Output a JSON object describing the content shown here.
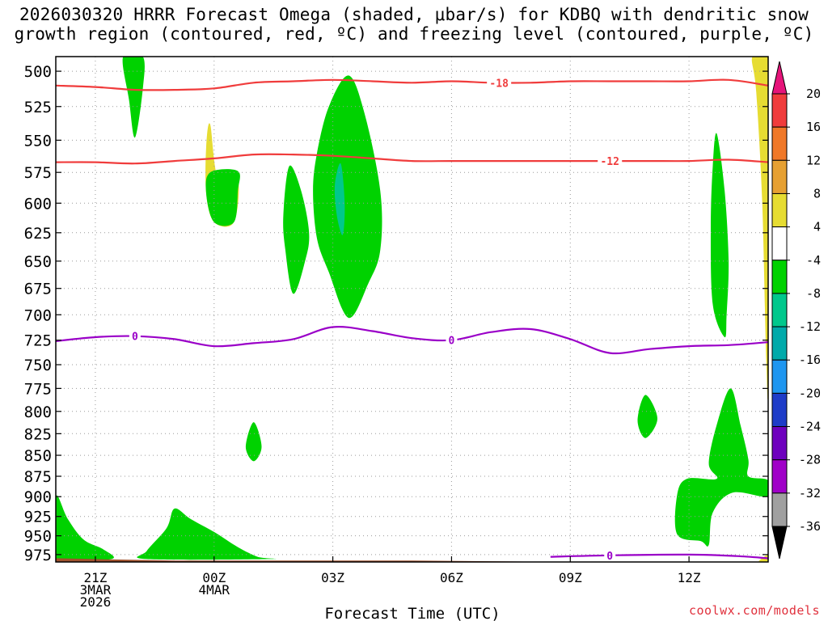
{
  "title_line1": "2026030320 HRRR Forecast Omega (shaded, μbar/s) for KDBQ with dendritic snow",
  "title_line2": "growth region (contoured, red, ºC) and freezing level (contoured, purple, ºC)",
  "credit": "coolwx.com/models",
  "chart_data": {
    "type": "heatmap",
    "title": "2026030320 HRRR Forecast Omega (shaded, μbar/s) for KDBQ with dendritic snow growth region (contoured, red, ºC) and freezing level (contoured, purple, ºC)",
    "xlabel": "Forecast Time (UTC)",
    "ylabel": "",
    "x_unit": "forecast hour",
    "xlim": [
      -1,
      17
    ],
    "ylim": [
      490,
      985
    ],
    "y_scale": "log-pressure (inverted)",
    "x_ticks": [
      {
        "x": 0,
        "lines": [
          "21Z",
          "3MAR",
          "2026"
        ]
      },
      {
        "x": 3,
        "lines": [
          "00Z",
          "4MAR"
        ]
      },
      {
        "x": 6,
        "lines": [
          "03Z"
        ]
      },
      {
        "x": 9,
        "lines": [
          "06Z"
        ]
      },
      {
        "x": 12,
        "lines": [
          "09Z"
        ]
      },
      {
        "x": 15,
        "lines": [
          "12Z"
        ]
      }
    ],
    "y_ticks": [
      500,
      525,
      550,
      575,
      600,
      625,
      650,
      675,
      700,
      725,
      750,
      775,
      800,
      825,
      850,
      875,
      900,
      925,
      950,
      975
    ],
    "colorbar": {
      "labels": [
        "20",
        "16",
        "12",
        "8",
        "4",
        "-4",
        "-8",
        "-12",
        "-16",
        "-20",
        "-24",
        "-28",
        "-32",
        "-36"
      ],
      "bins": [
        {
          "from": 16,
          "to": 20,
          "color": "#f03c3c"
        },
        {
          "from": 12,
          "to": 16,
          "color": "#f07828"
        },
        {
          "from": 8,
          "to": 12,
          "color": "#e6a032"
        },
        {
          "from": 4,
          "to": 8,
          "color": "#e6dc32"
        },
        {
          "from": -4,
          "to": 4,
          "color": "#ffffff"
        },
        {
          "from": -8,
          "to": -4,
          "color": "#00d200"
        },
        {
          "from": -12,
          "to": -8,
          "color": "#00c88c"
        },
        {
          "from": -16,
          "to": -12,
          "color": "#00aaaa"
        },
        {
          "from": -20,
          "to": -16,
          "color": "#1e96f0"
        },
        {
          "from": -24,
          "to": -20,
          "color": "#1e3cc8"
        },
        {
          "from": -28,
          "to": -24,
          "color": "#6e00be"
        },
        {
          "from": -32,
          "to": -28,
          "color": "#a000c8"
        },
        {
          "from": -36,
          "to": -32,
          "color": "#a0a0a0"
        }
      ],
      "over_color": "#e6147a",
      "under_color": "#000000"
    },
    "contours": [
      {
        "name": "-18C isotherm (dendritic growth top)",
        "label": "-18",
        "color": "#f03c3c",
        "x": [
          -1,
          0,
          1,
          2,
          3,
          4,
          5,
          6,
          7,
          8,
          9,
          10,
          11,
          12,
          13,
          14,
          15,
          16,
          17
        ],
        "p": [
          510,
          511,
          513,
          513,
          512,
          508,
          507,
          506,
          507,
          508,
          507,
          508,
          508,
          507,
          507,
          507,
          507,
          506,
          510
        ],
        "label_x": 10.2
      },
      {
        "name": "-12C isotherm (dendritic growth bottom)",
        "label": "-12",
        "color": "#f03c3c",
        "x": [
          -1,
          0,
          1,
          2,
          3,
          4,
          5,
          6,
          7,
          8,
          9,
          10,
          11,
          12,
          13,
          14,
          15,
          16,
          17
        ],
        "p": [
          567,
          567,
          568,
          566,
          564,
          561,
          561,
          562,
          564,
          566,
          566,
          566,
          566,
          566,
          566,
          566,
          566,
          565,
          567
        ],
        "label_x": 13.0
      },
      {
        "name": "0C isotherm (freezing level)",
        "label": "0",
        "color": "#9a00c8",
        "x": [
          -1,
          0,
          1,
          2,
          3,
          4,
          5,
          6,
          7,
          8,
          9,
          10,
          11,
          12,
          13,
          14,
          15,
          16,
          17
        ],
        "p": [
          726,
          722,
          721,
          724,
          731,
          728,
          724,
          712,
          716,
          723,
          725,
          717,
          714,
          724,
          738,
          734,
          731,
          730,
          727
        ],
        "label_x": 1.0,
        "label2_x": 9.0
      },
      {
        "name": "0C isotherm near surface",
        "label": "0",
        "color": "#9a00c8",
        "x": [
          11.5,
          13,
          15,
          16.2,
          17
        ],
        "p": [
          978,
          976,
          975,
          977,
          980
        ],
        "label_x": 13.0
      }
    ],
    "omega_regions": [
      {
        "bin": "-4 to -8",
        "color": "#00d200",
        "points": [
          [
            0.7,
            490
          ],
          [
            1.2,
            490
          ],
          [
            1.2,
            512
          ],
          [
            1.0,
            548
          ],
          [
            0.85,
            520
          ]
        ]
      },
      {
        "bin": "4 to 8",
        "color": "#e6dc32",
        "points": [
          [
            2.9,
            538
          ],
          [
            3.1,
            580
          ],
          [
            3.6,
            580
          ],
          [
            3.5,
            616
          ],
          [
            3.0,
            616
          ],
          [
            2.8,
            592
          ],
          [
            2.8,
            555
          ]
        ]
      },
      {
        "bin": "-4 to -8",
        "color": "#00d200",
        "points": [
          [
            2.9,
            575
          ],
          [
            3.6,
            574
          ],
          [
            3.6,
            590
          ],
          [
            3.5,
            616
          ],
          [
            3.0,
            616
          ],
          [
            2.8,
            592
          ]
        ]
      },
      {
        "bin": "-4 to -8",
        "color": "#00d200",
        "points": [
          [
            4.9,
            570
          ],
          [
            5.2,
            590
          ],
          [
            5.4,
            625
          ],
          [
            5.3,
            650
          ],
          [
            5.0,
            680
          ],
          [
            4.8,
            640
          ],
          [
            4.75,
            610
          ]
        ]
      },
      {
        "bin": "-4 to -8",
        "color": "#00d200",
        "points": [
          [
            6.4,
            503
          ],
          [
            6.8,
            530
          ],
          [
            7.2,
            590
          ],
          [
            7.2,
            640
          ],
          [
            6.9,
            670
          ],
          [
            6.4,
            703
          ],
          [
            5.9,
            660
          ],
          [
            5.6,
            630
          ],
          [
            5.5,
            590
          ],
          [
            5.6,
            560
          ],
          [
            5.9,
            525
          ]
        ]
      },
      {
        "bin": "-8 to -12",
        "color": "#00c88c",
        "points": [
          [
            6.2,
            568
          ],
          [
            6.3,
            600
          ],
          [
            6.25,
            627
          ],
          [
            6.1,
            610
          ],
          [
            6.05,
            585
          ]
        ]
      },
      {
        "bin": "-4 to -8",
        "color": "#00d200",
        "points": [
          [
            4.0,
            812
          ],
          [
            4.2,
            840
          ],
          [
            4.0,
            857
          ],
          [
            3.8,
            840
          ]
        ]
      },
      {
        "bin": "-4 to -8",
        "color": "#00d200",
        "points": [
          [
            13.9,
            782
          ],
          [
            14.2,
            808
          ],
          [
            13.9,
            830
          ],
          [
            13.7,
            810
          ]
        ]
      },
      {
        "bin": "-4 to -8",
        "color": "#00d200",
        "points": [
          [
            15.7,
            545
          ],
          [
            15.9,
            590
          ],
          [
            16.0,
            650
          ],
          [
            15.95,
            700
          ],
          [
            15.9,
            722
          ],
          [
            15.6,
            690
          ],
          [
            15.55,
            620
          ],
          [
            15.6,
            570
          ]
        ]
      },
      {
        "bin": "4 to 8",
        "color": "#e6dc32",
        "points": [
          [
            16.6,
            490
          ],
          [
            17,
            490
          ],
          [
            17,
            760
          ],
          [
            16.95,
            745
          ],
          [
            16.85,
            600
          ],
          [
            16.7,
            515
          ]
        ]
      },
      {
        "bin": "4 to 8",
        "color": "#e6dc32",
        "points": [
          [
            16.75,
            985
          ],
          [
            17,
            975
          ],
          [
            17,
            985
          ]
        ]
      },
      {
        "bin": "-4 to -8",
        "color": "#00d200",
        "points": [
          [
            16.05,
            775
          ],
          [
            16.3,
            815
          ],
          [
            16.5,
            855
          ],
          [
            16.5,
            875
          ],
          [
            17,
            880
          ],
          [
            17,
            900
          ],
          [
            16.1,
            895
          ],
          [
            15.6,
            920
          ],
          [
            15.5,
            962
          ],
          [
            15.3,
            957
          ],
          [
            14.7,
            948
          ],
          [
            14.7,
            898
          ],
          [
            14.95,
            878
          ],
          [
            15.7,
            878
          ],
          [
            15.5,
            860
          ],
          [
            15.7,
            815
          ]
        ]
      },
      {
        "bin": "-4 to -8",
        "color": "#00d200",
        "points": [
          [
            -1,
            900
          ],
          [
            -0.7,
            928
          ],
          [
            -0.3,
            955
          ],
          [
            0.2,
            968
          ],
          [
            0.4,
            981
          ],
          [
            -1,
            981
          ]
        ]
      },
      {
        "bin": "-4 to -8",
        "color": "#00d200",
        "points": [
          [
            1.3,
            970
          ],
          [
            1.8,
            940
          ],
          [
            2.0,
            915
          ],
          [
            2.4,
            928
          ],
          [
            3.0,
            945
          ],
          [
            3.6,
            965
          ],
          [
            4.1,
            978
          ],
          [
            4.4,
            981
          ],
          [
            1.3,
            981
          ]
        ]
      }
    ],
    "terrain": {
      "color": "#a0522d",
      "x": [
        -1,
        0,
        2,
        4,
        6,
        8,
        10,
        12,
        14,
        16,
        17
      ],
      "p": [
        980,
        981,
        983,
        983,
        983,
        983,
        984,
        985,
        985,
        985,
        985
      ]
    }
  }
}
